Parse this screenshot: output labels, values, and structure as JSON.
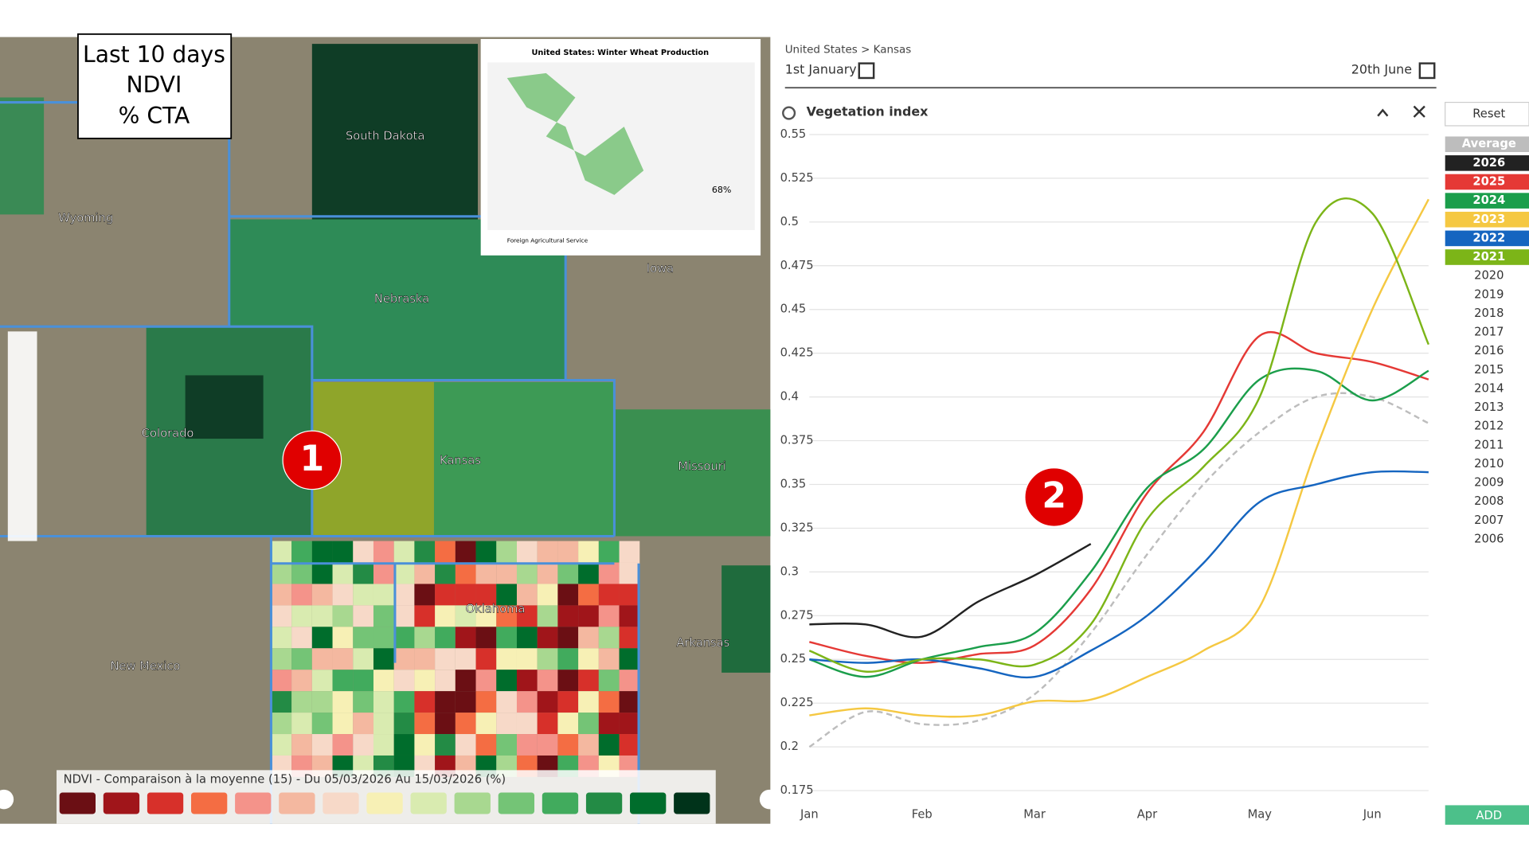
{
  "annotations": [
    "1",
    "2"
  ],
  "map": {
    "info_box": [
      "Last 10 days",
      "NDVI",
      "% CTA"
    ],
    "labels": [
      "South Dakota",
      "Wyoming",
      "Nebraska",
      "Iowa",
      "Colorado",
      "Kansas",
      "Missouri",
      "Oklahoma",
      "Arkansas",
      "New Mexico"
    ],
    "inset": {
      "title": "United States: Winter Wheat Production",
      "agency": "Foreign Agricultural Service",
      "share": "68%"
    },
    "legend": {
      "title": "NDVI - Comparaison à la moyenne (15) - Du 05/03/2026 Au 15/03/2026 (%)",
      "colors": [
        "#6b0f14",
        "#a0151a",
        "#d7302a",
        "#f46d43",
        "#f4938a",
        "#f4b8a0",
        "#f7d9c8",
        "#f7f0b5",
        "#d9ebb0",
        "#a8d890",
        "#74c476",
        "#41ab5d",
        "#238b45",
        "#006d2c",
        "#00331a"
      ]
    }
  },
  "panel": {
    "breadcrumb": "United States > Kansas",
    "start": "1st January",
    "end": "20th June",
    "widget": "Vegetation index",
    "reset": "Reset",
    "add": "ADD",
    "inactive_years": [
      "2020",
      "2019",
      "2018",
      "2017",
      "2016",
      "2015",
      "2014",
      "2013",
      "2012",
      "2011",
      "2010",
      "2009",
      "2008",
      "2007",
      "2006"
    ]
  },
  "chart_data": {
    "type": "line",
    "categories": [
      "Jan",
      null,
      "Feb",
      null,
      "Mar",
      null,
      "Apr",
      null,
      "May",
      null,
      "Jun",
      null
    ],
    "ylim": [
      0.175,
      0.55
    ],
    "yticks": [
      0.175,
      0.2,
      0.225,
      0.25,
      0.275,
      0.3,
      0.325,
      0.35,
      0.375,
      0.4,
      0.425,
      0.45,
      0.475,
      0.5,
      0.525,
      0.55
    ],
    "grid": true,
    "series": [
      {
        "name": "Average",
        "color": "#bdbdbd",
        "dashed": true,
        "values": [
          0.2,
          0.22,
          0.213,
          0.215,
          0.23,
          0.265,
          0.31,
          0.35,
          0.38,
          0.4,
          0.4,
          0.385
        ]
      },
      {
        "name": "2026",
        "color": "#222222",
        "values": [
          0.27,
          0.27,
          0.263,
          0.283,
          0.298,
          0.316,
          null,
          null,
          null,
          null,
          null,
          null
        ]
      },
      {
        "name": "2025",
        "color": "#e53935",
        "values": [
          0.26,
          0.252,
          0.248,
          0.253,
          0.258,
          0.29,
          0.345,
          0.38,
          0.435,
          0.425,
          0.42,
          0.41
        ]
      },
      {
        "name": "2024",
        "color": "#1b9e4b",
        "values": [
          0.25,
          0.24,
          0.25,
          0.257,
          0.265,
          0.3,
          0.348,
          0.37,
          0.41,
          0.415,
          0.398,
          0.415
        ]
      },
      {
        "name": "2023",
        "color": "#f5c842",
        "values": [
          0.218,
          0.222,
          0.218,
          0.218,
          0.226,
          0.227,
          0.24,
          0.255,
          0.28,
          0.37,
          0.45,
          0.513
        ]
      },
      {
        "name": "2022",
        "color": "#1565c0",
        "values": [
          0.25,
          0.248,
          0.25,
          0.245,
          0.24,
          0.255,
          0.275,
          0.305,
          0.34,
          0.35,
          0.357,
          0.357
        ]
      },
      {
        "name": "2021",
        "color": "#7cb518",
        "values": [
          0.255,
          0.243,
          0.25,
          0.25,
          0.247,
          0.27,
          0.33,
          0.36,
          0.4,
          0.5,
          0.505,
          0.43
        ]
      }
    ]
  }
}
